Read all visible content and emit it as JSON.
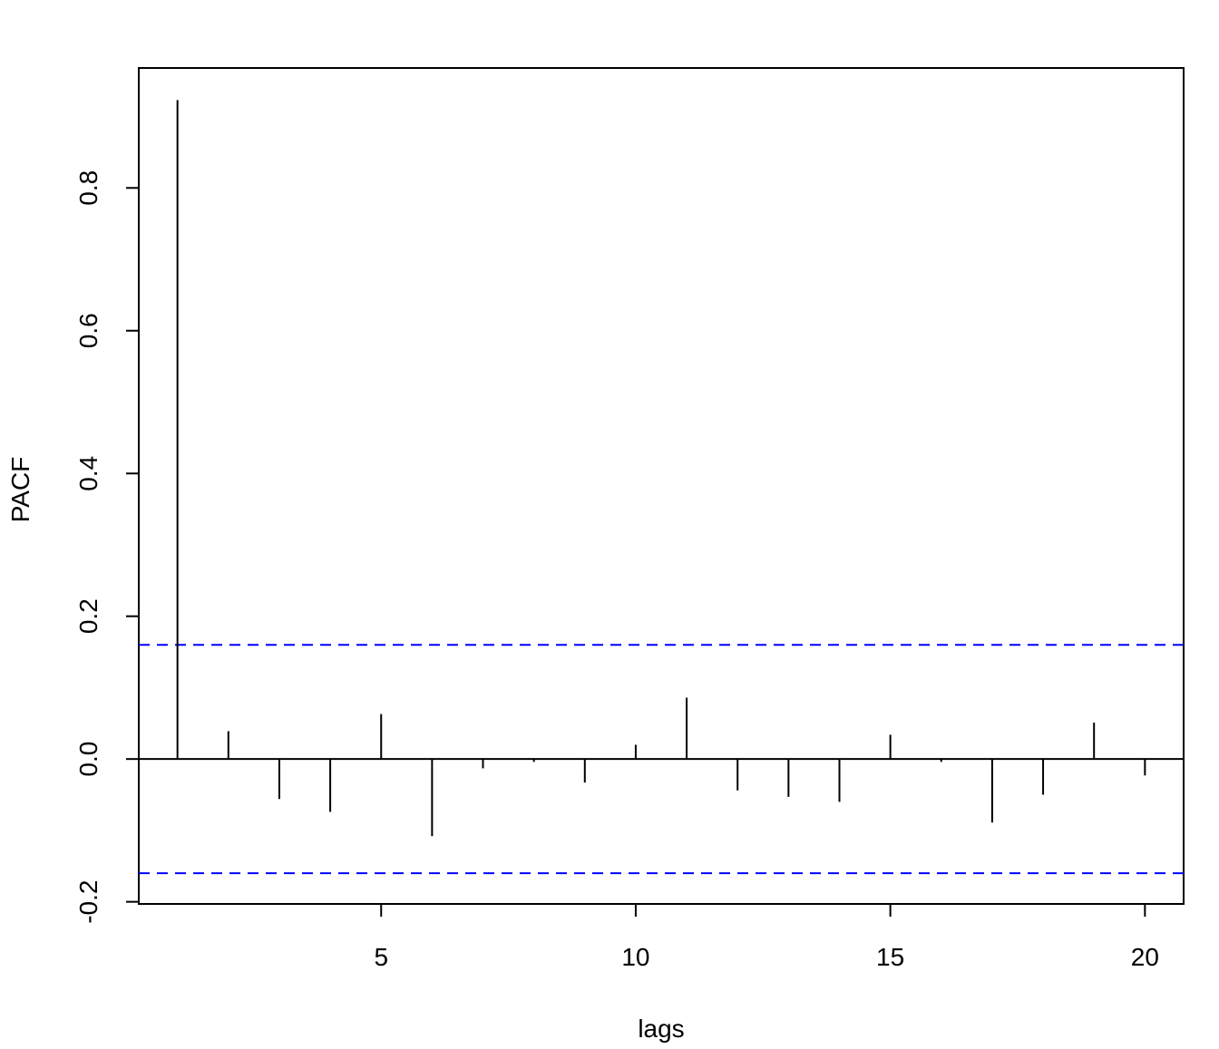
{
  "chart_data": {
    "type": "stem",
    "x_label": "lags",
    "y_label": "PACF",
    "x": [
      1,
      2,
      3,
      4,
      5,
      6,
      7,
      8,
      9,
      10,
      11,
      12,
      13,
      14,
      15,
      16,
      17,
      18,
      19,
      20
    ],
    "values": [
      0.923,
      0.039,
      -0.056,
      -0.074,
      0.063,
      -0.108,
      -0.013,
      -0.004,
      -0.033,
      0.02,
      0.086,
      -0.044,
      -0.053,
      -0.06,
      0.034,
      -0.004,
      -0.089,
      -0.05,
      0.051,
      -0.023
    ],
    "color": "#000000",
    "confidence_bounds": [
      -0.16,
      0.16
    ],
    "bound_color": "#0000ff",
    "xlim": [
      0.24,
      20.76
    ],
    "xticks": [
      5,
      10,
      15,
      20
    ],
    "ylim": [
      -0.203,
      0.968
    ],
    "yticks": [
      -0.2,
      {
        "value": 0,
        "label": "0.0"
      },
      0.2,
      0.4,
      0.6,
      0.8
    ]
  }
}
